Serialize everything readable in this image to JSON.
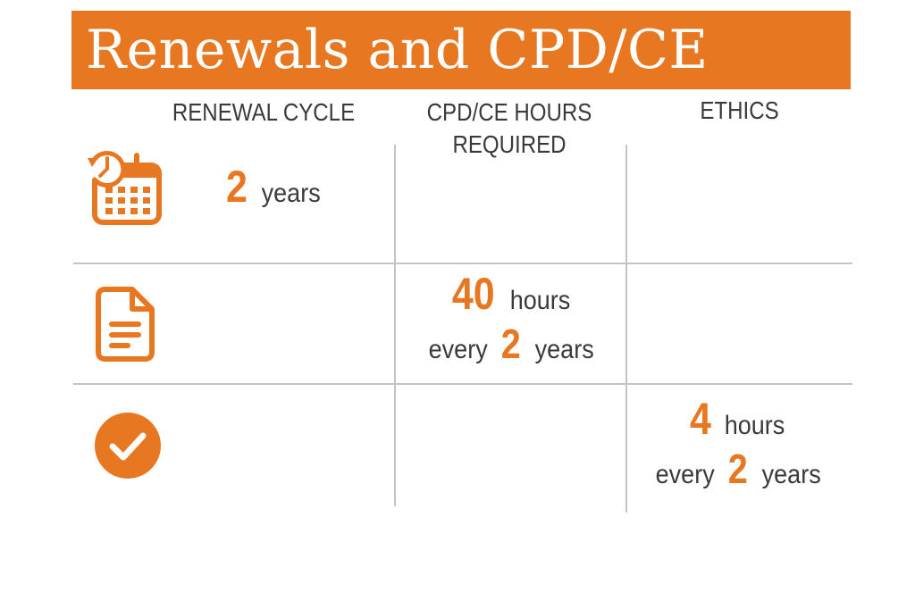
{
  "title": "Renewals and CPD/CE",
  "columns": {
    "renewal_cycle": "RENEWAL CYCLE",
    "cpd_hours": "CPD/CE HOURS REQUIRED",
    "ethics": "ETHICS"
  },
  "rows": {
    "renewal": {
      "icon": "calendar-clock-icon",
      "value": "2",
      "unit": "years"
    },
    "cpd": {
      "icon": "document-icon",
      "value": "40",
      "unit": "hours",
      "every_label": "every",
      "period_value": "2",
      "period_unit": "years"
    },
    "ethics": {
      "icon": "checkmark-circle-icon",
      "value": "4",
      "unit": "hours",
      "every_label": "every",
      "period_value": "2",
      "period_unit": "years"
    }
  },
  "colors": {
    "accent": "#e87722",
    "text": "#3a3a3a",
    "grid": "#c4c4c4"
  }
}
